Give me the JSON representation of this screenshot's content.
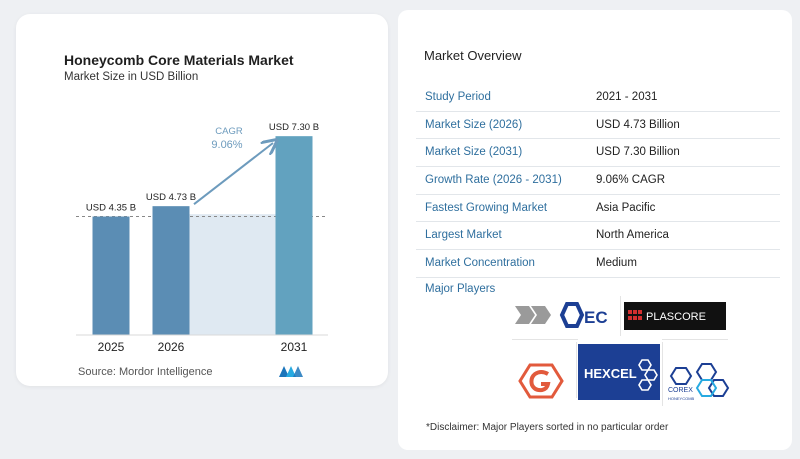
{
  "chart_data": {
    "type": "bar",
    "title": "Honeycomb Core Materials Market",
    "subtitle": "Market Size in USD Billion",
    "categories": [
      "2025",
      "2026",
      "2031"
    ],
    "values": [
      4.35,
      4.73,
      7.3
    ],
    "data_labels": [
      "USD 4.35 B",
      "USD 4.73 B",
      "USD 7.30 B"
    ],
    "cagr_label": "CAGR",
    "cagr_value": "9.06%",
    "ylim": [
      0,
      7.6
    ],
    "bar_colors": [
      "#5b8db4",
      "#5b8db4",
      "#62a2bf"
    ]
  },
  "source": "Source:  Mordor Intelligence",
  "overview": {
    "title": "Market Overview",
    "rows": [
      {
        "label": "Study Period",
        "value": "2021 - 2031"
      },
      {
        "label": "Market Size (2026)",
        "value": "USD 4.73 Billion"
      },
      {
        "label": "Market Size (2031)",
        "value": "USD 7.30 Billion"
      },
      {
        "label": "Growth Rate (2026 - 2031)",
        "value": "9.06% CAGR"
      },
      {
        "label": "Fastest Growing Market",
        "value": "Asia Pacific"
      },
      {
        "label": "Largest Market",
        "value": "North America"
      },
      {
        "label": "Market Concentration",
        "value": "Medium"
      }
    ]
  },
  "players": {
    "title": "Major Players",
    "logos": {
      "ec": "EC",
      "plascore": "PLASCORE",
      "hexcel": "HEXCEL",
      "corex": "COREX",
      "corex_sub": "HONEYCOMB"
    }
  },
  "disclaimer": "*Disclaimer: Major Players sorted in no particular order",
  "colors": {
    "label_blue": "#2f6f9e",
    "bar": "#5b8db4",
    "hexcel_navy": "#1c3f94"
  }
}
